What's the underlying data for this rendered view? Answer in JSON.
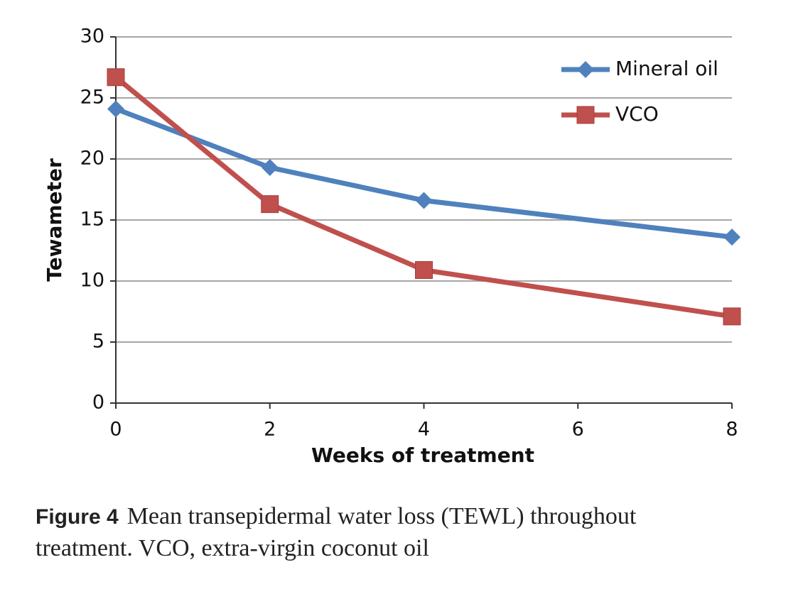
{
  "chart_data": {
    "type": "line",
    "x": [
      0,
      2,
      4,
      8
    ],
    "series": [
      {
        "name": "Mineral oil",
        "color": "#4f81bd",
        "marker": "diamond",
        "values": [
          24.1,
          19.3,
          16.6,
          13.6
        ]
      },
      {
        "name": "VCO",
        "color": "#c0504d",
        "marker": "square",
        "values": [
          26.7,
          16.3,
          10.9,
          7.1
        ]
      }
    ],
    "xlim": [
      0,
      8
    ],
    "xticks": [
      0,
      2,
      4,
      6,
      8
    ],
    "ylim": [
      0,
      30
    ],
    "yticks": [
      0,
      5,
      10,
      15,
      20,
      25,
      30
    ],
    "xlabel": "Weeks of treatment",
    "ylabel": "Tewameter",
    "grid": true,
    "legend": "upper right"
  },
  "caption": {
    "label": "Figure 4",
    "text": "Mean transepidermal water loss (TEWL) throughout treatment. VCO, extra-virgin coconut oil"
  }
}
